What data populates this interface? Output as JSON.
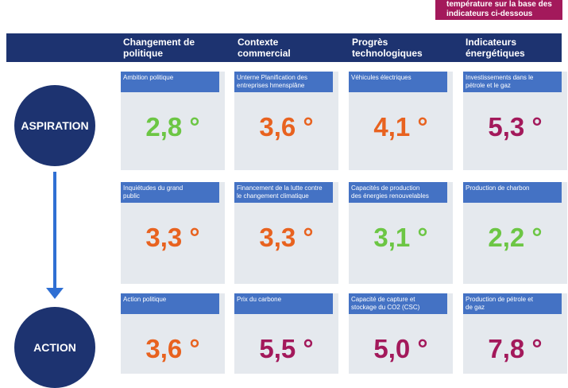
{
  "top_note": {
    "line1": "température sur la base des",
    "line2": "indicateurs ci-dessous"
  },
  "columns": [
    {
      "line1": "Changement de",
      "line2": "politique"
    },
    {
      "line1": "Contexte",
      "line2": "commercial"
    },
    {
      "line1": "Progrès",
      "line2": "technologiques"
    },
    {
      "line1": "Indicateurs",
      "line2": "énergétiques"
    }
  ],
  "rows": [
    {
      "label": "ASPIRATION",
      "cells": [
        {
          "label1": "Ambition politique",
          "label2": "",
          "value": "2,8 °",
          "color": "#6cc644"
        },
        {
          "label1": "Unterne Planification des",
          "label2": "entreprises hmensplâne",
          "value": "3,6 °",
          "color": "#e8621f"
        },
        {
          "label1": "Véhicules électriques",
          "label2": "",
          "value": "4,1 °",
          "color": "#e8621f"
        },
        {
          "label1": "Investissements dans le",
          "label2": "pétrole et le gaz",
          "value": "5,3 °",
          "color": "#a3195b"
        }
      ]
    },
    {
      "label": "",
      "cells": [
        {
          "label1": "Inquiétudes du grand",
          "label2": "public",
          "value": "3,3 °",
          "color": "#e8621f"
        },
        {
          "label1": "Financement de la lutte contre",
          "label2": "le changement climatique",
          "value": "3,3 °",
          "color": "#e8621f"
        },
        {
          "label1": "Capacités de production",
          "label2": "des énergies renouvelables",
          "value": "3,1 °",
          "color": "#6cc644"
        },
        {
          "label1": "Production de charbon",
          "label2": "",
          "value": "2,2 °",
          "color": "#6cc644"
        }
      ]
    },
    {
      "label": "ACTION",
      "cells": [
        {
          "label1": "Action politique",
          "label2": "",
          "value": "3,6 °",
          "color": "#e8621f"
        },
        {
          "label1": "Prix du carbone",
          "label2": "",
          "value": "5,5 °",
          "color": "#a3195b"
        },
        {
          "label1": "Capacité de capture et",
          "label2": "stockage du CO2 (CSC)",
          "value": "5,0 °",
          "color": "#a3195b"
        },
        {
          "label1": "Production de pétrole et",
          "label2": "de gaz",
          "value": "7,8 °",
          "color": "#a3195b"
        }
      ]
    }
  ]
}
